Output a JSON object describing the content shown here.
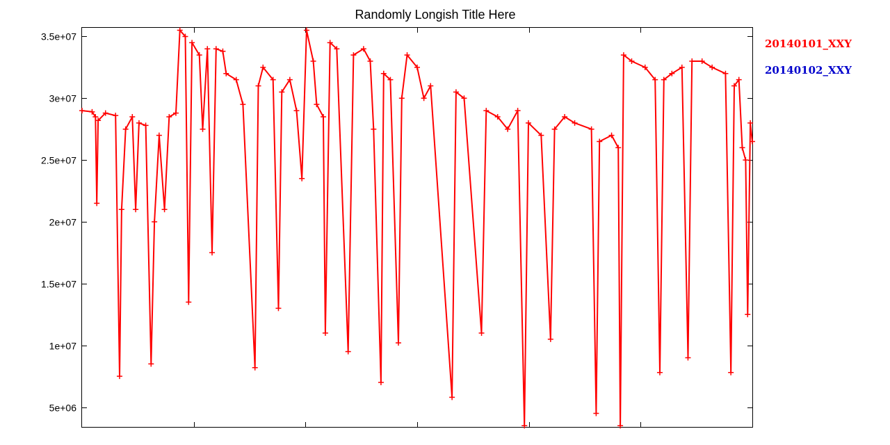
{
  "chart_data": {
    "type": "line",
    "title": "Randomly Longish Title Here",
    "xlabel": "",
    "ylabel": "",
    "ylim": [
      3400000,
      35700000
    ],
    "xlim": [
      0,
      100
    ],
    "x_ticks": [
      "",
      "",
      "",
      "",
      ""
    ],
    "y_ticks": [
      {
        "value": 5000000,
        "label": "5e+06"
      },
      {
        "value": 10000000,
        "label": "1e+07"
      },
      {
        "value": 15000000,
        "label": "1.5e+07"
      },
      {
        "value": 20000000,
        "label": "2e+07"
      },
      {
        "value": 25000000,
        "label": "2.5e+07"
      },
      {
        "value": 30000000,
        "label": "3e+07"
      },
      {
        "value": 35000000,
        "label": "3.5e+07"
      }
    ],
    "grid": false,
    "legend_position": "right",
    "series": [
      {
        "name": "20140101_XXY",
        "color": "#ff0000",
        "marker": "plus",
        "points": [
          [
            0.0,
            29000000
          ],
          [
            1.5,
            28900000
          ],
          [
            2.0,
            28500000
          ],
          [
            2.2,
            21500000
          ],
          [
            2.4,
            28200000
          ],
          [
            3.5,
            28800000
          ],
          [
            5.0,
            28600000
          ],
          [
            5.6,
            7500000
          ],
          [
            5.9,
            21000000
          ],
          [
            6.5,
            27500000
          ],
          [
            7.5,
            28500000
          ],
          [
            8.0,
            21000000
          ],
          [
            8.5,
            28000000
          ],
          [
            9.5,
            27800000
          ],
          [
            10.3,
            8500000
          ],
          [
            10.8,
            20000000
          ],
          [
            11.5,
            27000000
          ],
          [
            12.3,
            21000000
          ],
          [
            13.0,
            28500000
          ],
          [
            14.0,
            28800000
          ],
          [
            14.6,
            35500000
          ],
          [
            15.4,
            35000000
          ],
          [
            15.9,
            13500000
          ],
          [
            16.4,
            34500000
          ],
          [
            17.5,
            33500000
          ],
          [
            18.0,
            27500000
          ],
          [
            18.7,
            34000000
          ],
          [
            19.4,
            17500000
          ],
          [
            20.0,
            34000000
          ],
          [
            21.0,
            33800000
          ],
          [
            21.5,
            32000000
          ],
          [
            23.0,
            31500000
          ],
          [
            24.0,
            29500000
          ],
          [
            25.8,
            8200000
          ],
          [
            26.3,
            31000000
          ],
          [
            27.0,
            32500000
          ],
          [
            28.5,
            31500000
          ],
          [
            29.3,
            13000000
          ],
          [
            29.8,
            30500000
          ],
          [
            31.0,
            31500000
          ],
          [
            32.0,
            29000000
          ],
          [
            32.8,
            23500000
          ],
          [
            33.5,
            35500000
          ],
          [
            34.5,
            33000000
          ],
          [
            35.0,
            29500000
          ],
          [
            36.0,
            28500000
          ],
          [
            36.3,
            11000000
          ],
          [
            37.0,
            34500000
          ],
          [
            38.0,
            34000000
          ],
          [
            39.7,
            9500000
          ],
          [
            40.5,
            33500000
          ],
          [
            42.0,
            34000000
          ],
          [
            43.0,
            33000000
          ],
          [
            43.5,
            27500000
          ],
          [
            44.6,
            7000000
          ],
          [
            45.0,
            32000000
          ],
          [
            46.0,
            31500000
          ],
          [
            47.2,
            10200000
          ],
          [
            47.7,
            30000000
          ],
          [
            48.5,
            33500000
          ],
          [
            50.0,
            32500000
          ],
          [
            51.0,
            30000000
          ],
          [
            52.0,
            31000000
          ],
          [
            55.2,
            5800000
          ],
          [
            55.8,
            30500000
          ],
          [
            57.0,
            30000000
          ],
          [
            59.6,
            11000000
          ],
          [
            60.3,
            29000000
          ],
          [
            62.0,
            28500000
          ],
          [
            63.5,
            27500000
          ],
          [
            65.0,
            29000000
          ],
          [
            66.0,
            3500000
          ],
          [
            66.6,
            28000000
          ],
          [
            68.5,
            27000000
          ],
          [
            69.9,
            10500000
          ],
          [
            70.5,
            27500000
          ],
          [
            72.0,
            28500000
          ],
          [
            73.5,
            28000000
          ],
          [
            76.0,
            27500000
          ],
          [
            76.7,
            4500000
          ],
          [
            77.2,
            26500000
          ],
          [
            79.0,
            27000000
          ],
          [
            80.0,
            26000000
          ],
          [
            80.3,
            3500000
          ],
          [
            80.8,
            33500000
          ],
          [
            82.0,
            33000000
          ],
          [
            84.0,
            32500000
          ],
          [
            85.5,
            31500000
          ],
          [
            86.2,
            7800000
          ],
          [
            86.8,
            31500000
          ],
          [
            88.0,
            32000000
          ],
          [
            89.5,
            32500000
          ],
          [
            90.4,
            9000000
          ],
          [
            91.0,
            33000000
          ],
          [
            92.5,
            33000000
          ],
          [
            94.0,
            32500000
          ],
          [
            96.0,
            32000000
          ],
          [
            96.8,
            7800000
          ],
          [
            97.3,
            31000000
          ],
          [
            98.0,
            31500000
          ],
          [
            98.5,
            26000000
          ],
          [
            99.0,
            25000000
          ],
          [
            99.3,
            12500000
          ],
          [
            99.7,
            28000000
          ],
          [
            100.0,
            26500000
          ]
        ]
      },
      {
        "name": "20140102_XXY",
        "color": "#0000cc",
        "points": []
      }
    ]
  }
}
